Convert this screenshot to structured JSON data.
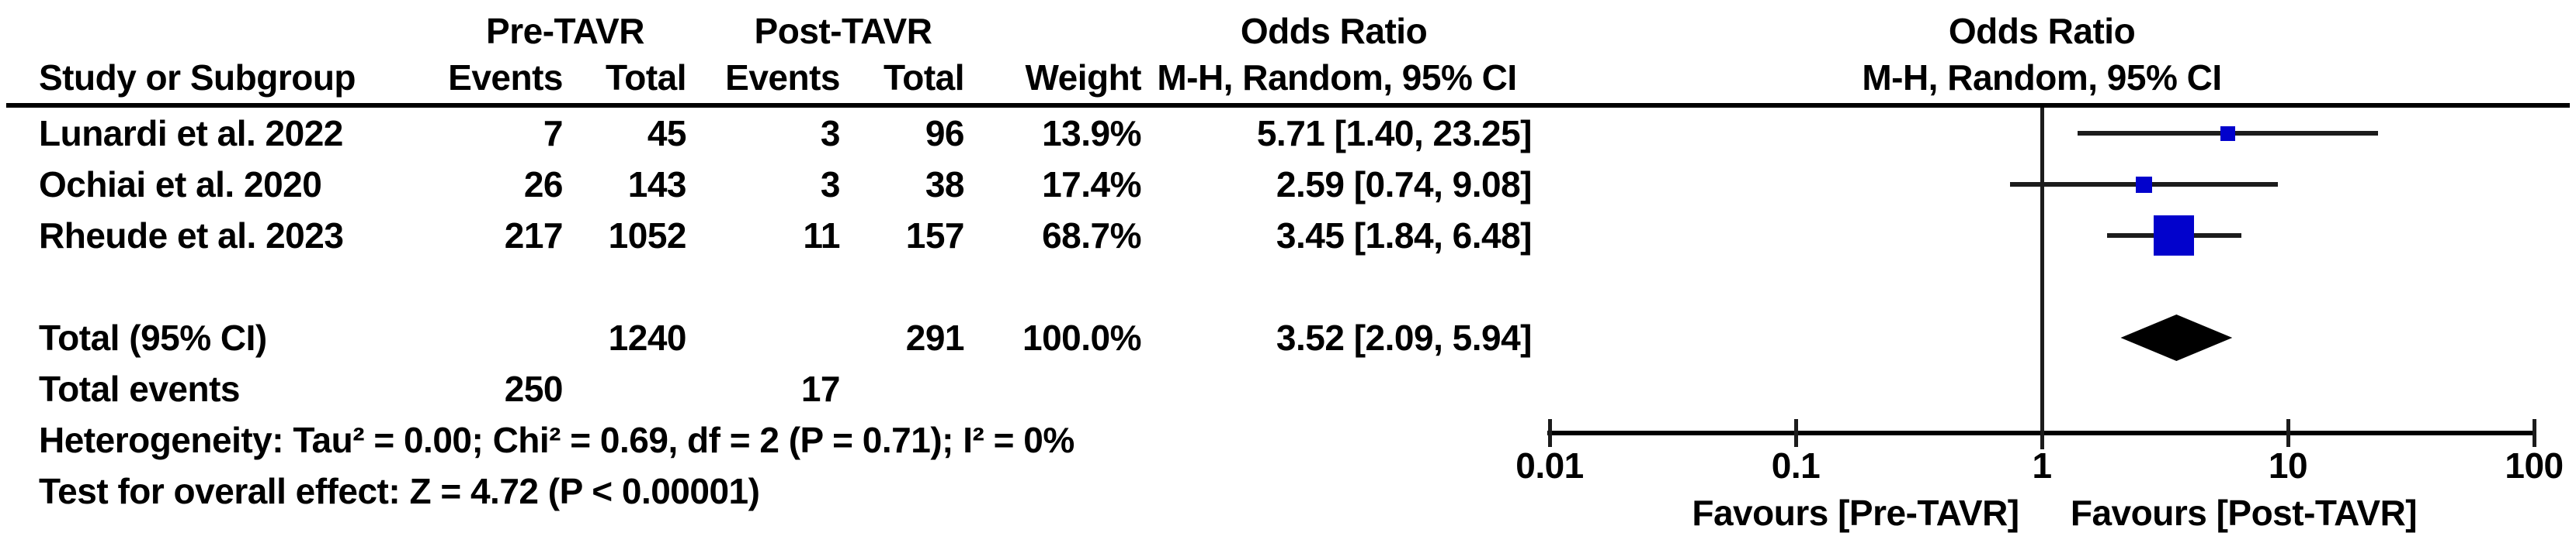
{
  "colors": {
    "square_blue": "#0202CC",
    "diamond_black": "#000000",
    "line_dark": "#1C1C1C"
  },
  "header": {
    "group1": "Pre-TAVR",
    "group2": "Post-TAVR",
    "or_title_left": "Odds Ratio",
    "or_subtitle_left": "M-H, Random, 95% CI",
    "or_title_right": "Odds Ratio",
    "or_subtitle_right": "M-H, Random, 95% CI",
    "study_col": "Study or Subgroup",
    "events_col": "Events",
    "total_col": "Total",
    "weight_col": "Weight"
  },
  "table": {
    "rows": [
      {
        "study": "Lunardi et al. 2022",
        "events1": "7",
        "total1": "45",
        "events2": "3",
        "total2": "96",
        "weight": "13.9%",
        "or_ci": "5.71 [1.40, 23.25]"
      },
      {
        "study": "Ochiai et al. 2020",
        "events1": "26",
        "total1": "143",
        "events2": "3",
        "total2": "38",
        "weight": "17.4%",
        "or_ci": "2.59 [0.74, 9.08]"
      },
      {
        "study": "Rheude et al. 2023",
        "events1": "217",
        "total1": "1052",
        "events2": "11",
        "total2": "157",
        "weight": "68.7%",
        "or_ci": "3.45 [1.84, 6.48]"
      }
    ],
    "total_row": {
      "label": "Total (95% CI)",
      "total1": "1240",
      "total2": "291",
      "weight": "100.0%",
      "or_ci": "3.52 [2.09, 5.94]"
    },
    "total_events_row": {
      "label": "Total events",
      "events1": "250",
      "events2": "17"
    },
    "heterogeneity": "Heterogeneity: Tau² = 0.00; Chi² = 0.69, df = 2 (P = 0.71); I² = 0%",
    "overall_effect": "Test for overall effect: Z = 4.72 (P < 0.00001)"
  },
  "axis": {
    "favours_left": "Favours [Pre-TAVR]",
    "favours_right": "Favours [Post-TAVR]"
  },
  "chart_data": {
    "type": "forest",
    "x_scale": "log10",
    "xlim": [
      0.01,
      100
    ],
    "x_ticks": [
      0.01,
      0.1,
      1,
      10,
      100
    ],
    "title": "Odds Ratio",
    "subtitle": "M-H, Random, 95% CI",
    "studies": [
      {
        "label": "Lunardi et al. 2022",
        "or": 5.71,
        "ci_low": 1.4,
        "ci_high": 23.25,
        "weight_pct": 13.9
      },
      {
        "label": "Ochiai et al. 2020",
        "or": 2.59,
        "ci_low": 0.74,
        "ci_high": 9.08,
        "weight_pct": 17.4
      },
      {
        "label": "Rheude et al. 2023",
        "or": 3.45,
        "ci_low": 1.84,
        "ci_high": 6.48,
        "weight_pct": 68.7
      }
    ],
    "total": {
      "label": "Total (95% CI)",
      "or": 3.52,
      "ci_low": 2.09,
      "ci_high": 5.94,
      "weight_pct": 100.0
    },
    "favours_left": "Favours [Pre-TAVR]",
    "favours_right": "Favours [Post-TAVR]"
  }
}
